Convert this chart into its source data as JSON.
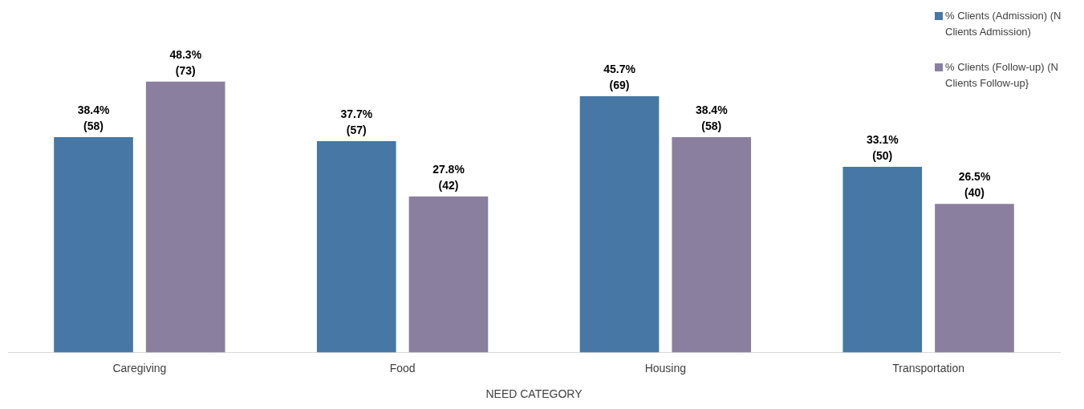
{
  "chart_data": {
    "type": "bar",
    "xlabel": "NEED CATEGORY",
    "categories": [
      "Caregiving",
      "Food",
      "Housing",
      "Transportation"
    ],
    "series": [
      {
        "name": "% Clients (Admission) (N Clients Admission)",
        "color": "#4677a5",
        "values": [
          38.4,
          37.7,
          45.7,
          33.1
        ],
        "value_labels": [
          "38.4%\n(58)",
          "37.7%\n(57)",
          "45.7%\n(69)",
          "33.1%\n(50)"
        ]
      },
      {
        "name": "% Clients (Follow-up) (N Clients Follow-up}",
        "color": "#8b7fa0",
        "values": [
          48.3,
          27.8,
          38.4,
          26.5
        ],
        "value_labels": [
          "48.3%\n(73)",
          "27.8%\n(42)",
          "38.4%\n(58)",
          "26.5%\n(40)"
        ]
      }
    ],
    "grid": false,
    "legend": "top right"
  }
}
